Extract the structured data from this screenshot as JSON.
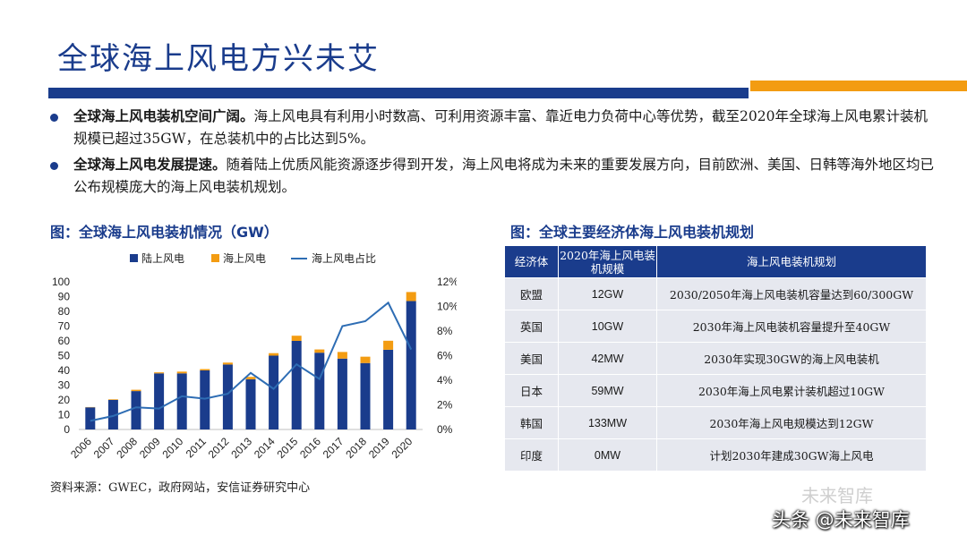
{
  "page": {
    "title": "全球海上风电方兴未艾",
    "colors": {
      "primary": "#1a3c8c",
      "accent": "#f39c12"
    }
  },
  "bullets": [
    {
      "lead": "全球海上风电装机空间广阔。",
      "text": "海上风电具有利用小时数高、可利用资源丰富、靠近电力负荷中心等优势，截至2020年全球海上风电累计装机规模已超过35GW，在总装机中的占比达到5%。"
    },
    {
      "lead": "全球海上风电发展提速。",
      "text": "随着陆上优质风能资源逐步得到开发，海上风电将成为未来的重要发展方向，目前欧洲、美国、日韩等海外地区均已公布规模庞大的海上风电装机规划。"
    }
  ],
  "chart_title": "图：全球海上风电装机情况（GW）",
  "table_title": "图：全球主要经济体海上风电装机规划",
  "source": "资料来源：GWEC，政府网站，安信证券研究中心",
  "chart_data": {
    "type": "bar",
    "stacked": true,
    "categories": [
      "2006",
      "2007",
      "2008",
      "2009",
      "2010",
      "2011",
      "2012",
      "2013",
      "2014",
      "2015",
      "2016",
      "2017",
      "2018",
      "2019",
      "2020"
    ],
    "series": [
      {
        "name": "陆上风电",
        "type": "bar",
        "color": "#1a3c8c",
        "axis": "left",
        "values": [
          15,
          20,
          26,
          38,
          38,
          40,
          44,
          34,
          50,
          60,
          52,
          48,
          45,
          54,
          87
        ]
      },
      {
        "name": "海上风电",
        "type": "bar",
        "color": "#f39c12",
        "axis": "left",
        "values": [
          0.2,
          0.4,
          0.9,
          0.7,
          1.2,
          0.9,
          1.3,
          1.6,
          1.7,
          3.5,
          2.2,
          4.5,
          4.3,
          6.1,
          6.1
        ]
      },
      {
        "name": "海上风电占比",
        "type": "line",
        "color": "#2e6db4",
        "axis": "right",
        "values": [
          0.7,
          1.1,
          1.8,
          1.7,
          2.7,
          2.5,
          2.9,
          4.6,
          3.3,
          5.3,
          4.1,
          8.4,
          8.8,
          10.3,
          6.5
        ]
      }
    ],
    "y_left": {
      "ticks": [
        0,
        10,
        20,
        30,
        40,
        50,
        60,
        70,
        80,
        90,
        100
      ],
      "range": [
        0,
        100
      ]
    },
    "y_right": {
      "ticks": [
        "0%",
        "2%",
        "4%",
        "6%",
        "8%",
        "10%",
        "12%"
      ],
      "range": [
        0,
        12
      ]
    },
    "legend_position": "top"
  },
  "table": {
    "headers": [
      "经济体",
      "2020年海上风电装机规模",
      "海上风电装机规划"
    ],
    "rows": [
      [
        "欧盟",
        "12GW",
        "2030/2050年海上风电装机容量达到60/300GW"
      ],
      [
        "英国",
        "10GW",
        "2030年海上风电装机容量提升至40GW"
      ],
      [
        "美国",
        "42MW",
        "2030年实现30GW的海上风电装机"
      ],
      [
        "日本",
        "59MW",
        "2030年海上风电累计装机超过10GW"
      ],
      [
        "韩国",
        "133MW",
        "2030年海上风电规模达到12GW"
      ],
      [
        "印度",
        "0MW",
        "计划2030年建成30GW海上风电"
      ]
    ]
  },
  "watermark_top": "未来智库",
  "watermark": "头条 @未来智库"
}
